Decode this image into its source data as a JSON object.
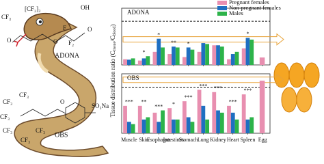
{
  "illustration": {
    "labels": [
      "CF₃",
      "[CF₂]₃",
      "O",
      "O",
      "F",
      "OH",
      "O",
      "F₂",
      "ADONA",
      "CF₃",
      "CF₃",
      "CF₃",
      "CF₃",
      "CF₃",
      "CF₃",
      "O",
      "SO₃Na",
      "OBS"
    ]
  },
  "chart_data": [
    {
      "type": "bar",
      "title": "ADONA",
      "ylim": [
        0,
        1.3
      ],
      "reference_line": 1,
      "ylabel_parts": [
        "Tissue distribution ratio (C",
        "tissue",
        "/C",
        "blood",
        ")"
      ],
      "legend": "top-right",
      "series": [
        {
          "name": "Pregnant females",
          "color": "#e88fb0",
          "values": [
            0.13,
            0.1,
            0.3,
            0.25,
            0.18,
            0.3,
            0.45,
            0.13,
            0.38,
            0.17
          ]
        },
        {
          "name": "Non-pregnant females",
          "color": "#1f6fc1",
          "values": [
            0.12,
            0.15,
            0.6,
            0.42,
            0.4,
            0.5,
            0.45,
            0.25,
            0.62,
            null
          ]
        },
        {
          "name": "Males",
          "color": "#2db34a",
          "values": [
            0.15,
            0.2,
            0.4,
            0.4,
            0.35,
            0.48,
            0.42,
            0.3,
            0.58,
            null
          ]
        }
      ],
      "significance": [
        null,
        "*",
        "*",
        "**",
        "*",
        null,
        null,
        null,
        "*",
        null
      ]
    },
    {
      "type": "bar",
      "title": "OBS",
      "ylim": [
        0,
        1.3
      ],
      "reference_line": 1,
      "categories": [
        "Muscle",
        "Skin",
        "Esophagus",
        "Intestines",
        "Stomach",
        "Lung",
        "Kidney",
        "Heart",
        "Spleen",
        "Egg"
      ],
      "series": [
        {
          "color": "#e88fb0",
          "values": [
            0.6,
            0.6,
            0.45,
            0.55,
            0.7,
            0.95,
            0.9,
            0.6,
            0.85,
            1.15
          ]
        },
        {
          "color": "#1f6fc1",
          "values": [
            0.25,
            0.3,
            0.25,
            0.3,
            0.35,
            0.6,
            0.5,
            0.45,
            0.3,
            null
          ]
        },
        {
          "color": "#2db34a",
          "values": [
            0.2,
            0.35,
            0.5,
            0.3,
            0.25,
            0.3,
            0.45,
            0.3,
            0.35,
            null
          ]
        }
      ],
      "significance": [
        "***",
        "**",
        "***",
        "*",
        "***",
        "***",
        "***",
        "***",
        "***",
        null
      ]
    }
  ]
}
